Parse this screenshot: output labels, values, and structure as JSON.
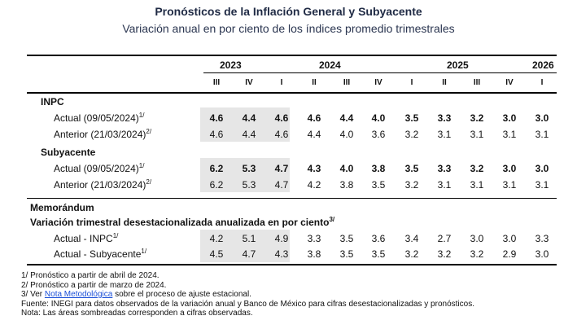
{
  "header": {
    "title": "Pronósticos de la Inflación General y Subyacente",
    "subtitle": "Variación anual en por ciento de los índices promedio trimestrales"
  },
  "years": [
    "2023",
    "2024",
    "2025",
    "2026"
  ],
  "quarters": [
    "III",
    "IV",
    "I",
    "II",
    "III",
    "IV",
    "I",
    "II",
    "III",
    "IV",
    "I"
  ],
  "sections": {
    "inpc": "INPC",
    "subyacente": "Subyacente",
    "memorandum": "Memorándum",
    "variacion": "Variación trimestral desestacionalizada anualizada en por ciento",
    "variacion_sup": "3/"
  },
  "rows": {
    "inpc_actual": {
      "label": "Actual (09/05/2024)",
      "sup": "1/",
      "values": [
        "4.6",
        "4.4",
        "4.6",
        "4.6",
        "4.4",
        "4.0",
        "3.5",
        "3.3",
        "3.2",
        "3.0",
        "3.0"
      ]
    },
    "inpc_anterior": {
      "label": "Anterior (21/03/2024)",
      "sup": "2/",
      "values": [
        "4.6",
        "4.4",
        "4.6",
        "4.4",
        "4.0",
        "3.6",
        "3.2",
        "3.1",
        "3.1",
        "3.1",
        "3.1"
      ]
    },
    "sub_actual": {
      "label": "Actual (09/05/2024)",
      "sup": "1/",
      "values": [
        "6.2",
        "5.3",
        "4.7",
        "4.3",
        "4.0",
        "3.8",
        "3.5",
        "3.3",
        "3.2",
        "3.0",
        "3.0"
      ]
    },
    "sub_anterior": {
      "label": "Anterior (21/03/2024)",
      "sup": "2/",
      "values": [
        "6.2",
        "5.3",
        "4.7",
        "4.2",
        "3.8",
        "3.5",
        "3.2",
        "3.1",
        "3.1",
        "3.1",
        "3.1"
      ]
    },
    "mem_inpc": {
      "label": "Actual - INPC",
      "sup": "1/",
      "values": [
        "4.2",
        "5.1",
        "4.9",
        "3.3",
        "3.5",
        "3.6",
        "3.4",
        "2.7",
        "3.0",
        "3.0",
        "3.3"
      ]
    },
    "mem_sub": {
      "label": "Actual - Subyacente",
      "sup": "1/",
      "values": [
        "4.5",
        "4.7",
        "4.3",
        "3.8",
        "3.5",
        "3.5",
        "3.2",
        "3.2",
        "3.2",
        "2.9",
        "3.0"
      ]
    }
  },
  "notes": {
    "n1": "1/ Pronóstico a partir de abril de 2024.",
    "n2": "2/ Pronóstico a partir de marzo de 2024.",
    "n3_pre": "3/ Ver ",
    "n3_link": "Nota Metodológica",
    "n3_post": " sobre el proceso de ajuste estacional.",
    "fuente": "Fuente: INEGI para datos observados de la variación anual y Banco de México para cifras desestacionalizadas y pronósticos.",
    "nota": "Nota: Las áreas sombreadas corresponden a cifras observadas."
  }
}
